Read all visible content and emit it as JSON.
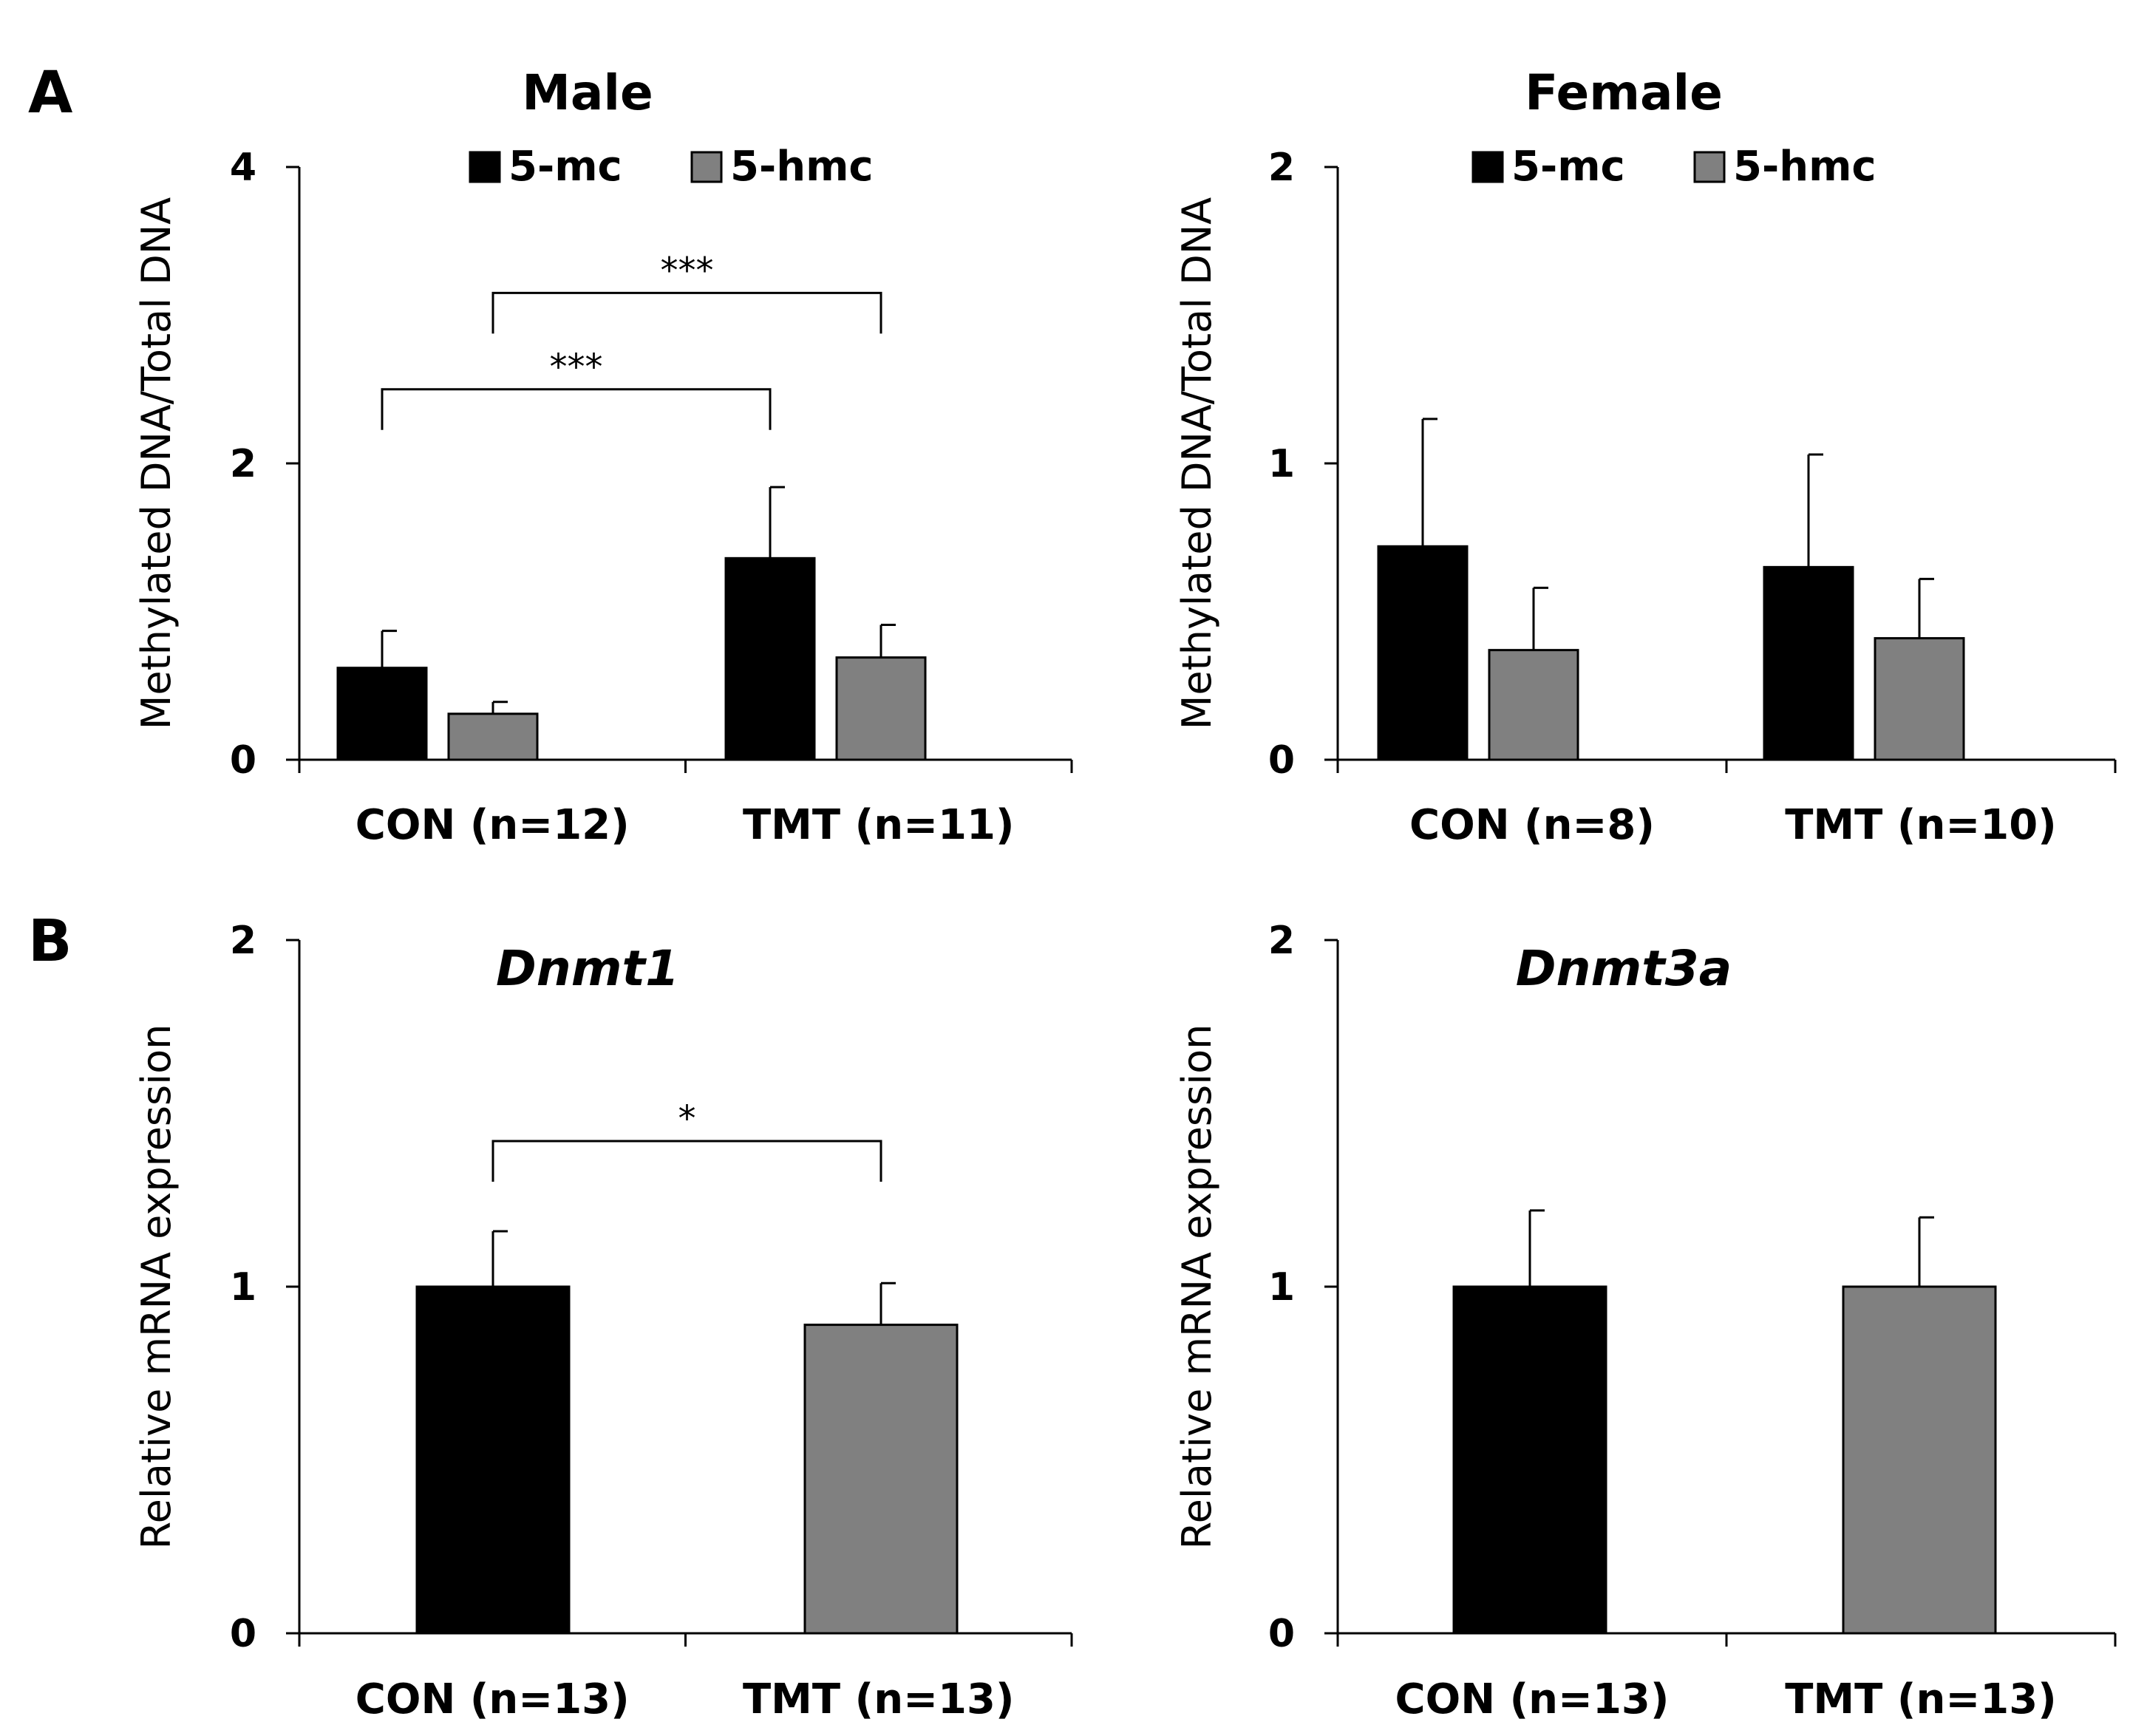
{
  "panel_labels": [
    "A",
    "B"
  ],
  "legend": {
    "items": [
      {
        "label": "5-mc",
        "color": "#000000"
      },
      {
        "label": "5-hmc",
        "color": "#808080"
      }
    ]
  },
  "chart_data": [
    {
      "id": "male",
      "type": "bar",
      "title": "Male",
      "title_italic": false,
      "ylabel": "Methylated DNA/Total DNA",
      "ylim": [
        0,
        4
      ],
      "yticks": [
        0,
        2,
        4
      ],
      "categories": [
        "CON (n=12)",
        "TMT (n=11)"
      ],
      "series": [
        {
          "name": "5-mc",
          "color": "#000000",
          "values": [
            0.62,
            1.36
          ],
          "errors": [
            0.25,
            0.48
          ]
        },
        {
          "name": "5-hmc",
          "color": "#808080",
          "values": [
            0.31,
            0.69
          ],
          "errors": [
            0.08,
            0.22
          ]
        }
      ],
      "show_legend": true,
      "significance": [
        {
          "label": "***",
          "from": [
            0,
            0
          ],
          "to": [
            1,
            0
          ],
          "y": 2.5
        },
        {
          "label": "***",
          "from": [
            0,
            1
          ],
          "to": [
            1,
            1
          ],
          "y": 3.15
        }
      ]
    },
    {
      "id": "female",
      "type": "bar",
      "title": "Female",
      "title_italic": false,
      "ylabel": "Methylated DNA/Total DNA",
      "ylim": [
        0,
        2
      ],
      "yticks": [
        0,
        1,
        2
      ],
      "categories": [
        "CON (n=8)",
        "TMT (n=10)"
      ],
      "series": [
        {
          "name": "5-mc",
          "color": "#000000",
          "values": [
            0.72,
            0.65
          ],
          "errors": [
            0.43,
            0.38
          ]
        },
        {
          "name": "5-hmc",
          "color": "#808080",
          "values": [
            0.37,
            0.41
          ],
          "errors": [
            0.21,
            0.2
          ]
        }
      ],
      "show_legend": true,
      "significance": []
    },
    {
      "id": "dnmt1",
      "type": "bar",
      "title": "Dnmt1",
      "title_italic": true,
      "ylabel": "Relative mRNA expression",
      "ylim": [
        0,
        2
      ],
      "yticks": [
        0,
        1,
        2
      ],
      "categories": [
        "CON (n=13)",
        "TMT (n=13)"
      ],
      "series": [
        {
          "name": "Dnmt1",
          "colors": [
            "#000000",
            "#808080"
          ],
          "values": [
            1.0,
            0.89
          ],
          "errors": [
            0.16,
            0.12
          ]
        }
      ],
      "show_legend": false,
      "significance": [
        {
          "label": "*",
          "from": [
            0,
            0
          ],
          "to": [
            1,
            0
          ],
          "y": 1.42
        }
      ]
    },
    {
      "id": "dnmt3a",
      "type": "bar",
      "title": "Dnmt3a",
      "title_italic": true,
      "ylabel": "Relative mRNA expression",
      "ylim": [
        0,
        2
      ],
      "yticks": [
        0,
        1,
        2
      ],
      "categories": [
        "CON (n=13)",
        "TMT (n=13)"
      ],
      "series": [
        {
          "name": "Dnmt3a",
          "colors": [
            "#000000",
            "#808080"
          ],
          "values": [
            1.0,
            1.0
          ],
          "errors": [
            0.22,
            0.2
          ]
        }
      ],
      "show_legend": false,
      "significance": []
    }
  ]
}
